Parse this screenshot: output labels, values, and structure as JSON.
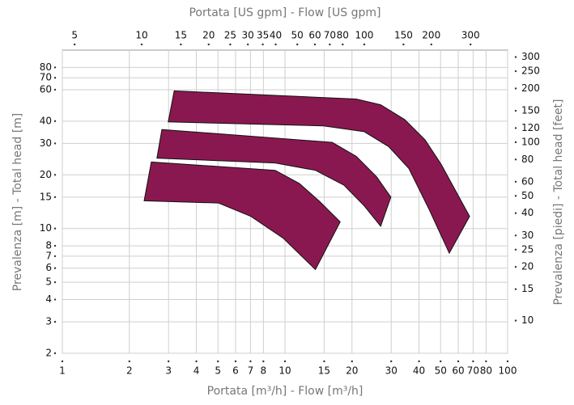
{
  "chart_data": {
    "type": "polygon",
    "title": "Portata [US gpm] - Flow [US gpm]",
    "xlabel": "Portata [m³/h] - Flow [m³/h]",
    "ylabel": "Prevalenza [m] - Total head [m]",
    "y2label": "Prevalenza [piedi] - Total head [feet]",
    "xscale": "log",
    "yscale": "log",
    "grid": true,
    "xlim": [
      1,
      100
    ],
    "xticks": [
      1,
      2,
      3,
      4,
      5,
      6,
      7,
      8,
      10,
      15,
      20,
      30,
      40,
      50,
      60,
      70,
      80,
      100
    ],
    "x2lim": [
      4.403,
      440.3
    ],
    "x2ticks": [
      5,
      10,
      15,
      20,
      25,
      30,
      35,
      40,
      50,
      60,
      70,
      80,
      100,
      150,
      200,
      300
    ],
    "ylim": [
      2,
      100
    ],
    "yticks": [
      2,
      3,
      4,
      5,
      6,
      7,
      8,
      10,
      15,
      20,
      30,
      40,
      60,
      70,
      80
    ],
    "y2lim": [
      6.56,
      328.1
    ],
    "y2ticks": [
      10,
      15,
      20,
      25,
      30,
      40,
      50,
      60,
      80,
      100,
      120,
      150,
      200,
      250,
      300
    ],
    "series": [
      {
        "color": "#8a1850",
        "x": [
          3.18,
          20.9,
          26.9,
          34.5,
          42.6,
          50.3,
          67.5,
          54.7,
          44.4,
          36.0,
          29.2,
          22.7,
          14.9,
          2.99
        ],
        "values": [
          59.1,
          53.2,
          49.4,
          40.8,
          31.4,
          22.9,
          11.7,
          7.28,
          12.8,
          21.7,
          28.8,
          34.9,
          37.6,
          39.6
        ]
      },
      {
        "color": "#8a1850",
        "x": [
          2.8,
          16.3,
          20.9,
          25.8,
          29.9,
          26.9,
          22.7,
          18.4,
          13.7,
          9.04,
          2.66
        ],
        "values": [
          35.9,
          30.4,
          25.4,
          19.5,
          15.0,
          10.3,
          13.4,
          17.5,
          21.2,
          23.3,
          24.8
        ]
      },
      {
        "color": "#8a1850",
        "x": [
          2.51,
          9.04,
          11.6,
          14.3,
          17.7,
          13.7,
          9.84,
          7.03,
          5.03,
          2.33
        ],
        "values": [
          23.6,
          21.2,
          17.9,
          14.2,
          10.9,
          5.89,
          8.81,
          11.7,
          13.9,
          14.3
        ]
      }
    ]
  }
}
